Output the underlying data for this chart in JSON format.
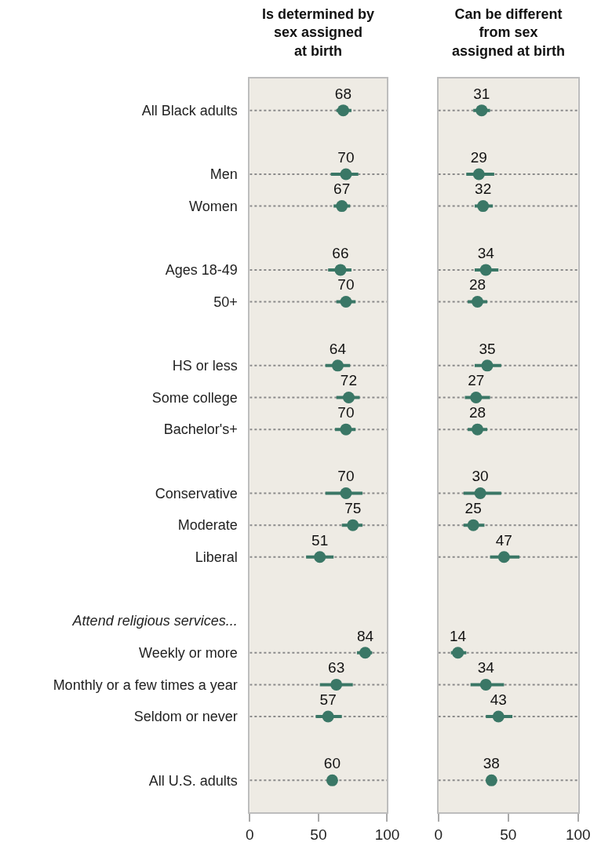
{
  "chart_data": [
    {
      "type": "scatter",
      "title": "Is determined by\nsex assigned\nat birth",
      "categories": [
        "All Black adults",
        null,
        "Men",
        "Women",
        null,
        "Ages 18-49",
        "50+",
        null,
        "HS or less",
        "Some college",
        "Bachelor's+",
        null,
        "Conservative",
        "Moderate",
        "Liberal",
        null,
        "Attend religious services...",
        "Weekly or more",
        "Monthly or a few times a year",
        "Seldom or never",
        null,
        "All U.S. adults"
      ],
      "values": [
        68,
        null,
        70,
        67,
        null,
        66,
        70,
        null,
        64,
        72,
        70,
        null,
        70,
        75,
        51,
        null,
        null,
        84,
        63,
        57,
        null,
        60
      ],
      "errors": [
        [
          63,
          74
        ],
        null,
        [
          59,
          79
        ],
        [
          61,
          73
        ],
        null,
        [
          57,
          74
        ],
        [
          63,
          77
        ],
        null,
        [
          55,
          73
        ],
        [
          63,
          80
        ],
        [
          62,
          77
        ],
        null,
        [
          55,
          82
        ],
        [
          67,
          82
        ],
        [
          41,
          61
        ],
        null,
        null,
        [
          78,
          89
        ],
        [
          51,
          75
        ],
        [
          48,
          67
        ],
        null,
        null
      ],
      "color": "#3a7766",
      "marker": "circle",
      "data_labels": true,
      "grid": "y",
      "orientation": "horizontal",
      "xlim": [
        0,
        100
      ],
      "xticks": [
        0,
        50,
        100
      ]
    },
    {
      "type": "scatter",
      "title": "Can be different\nfrom sex\nassigned at birth",
      "categories": [
        null,
        null,
        null,
        null,
        null,
        null,
        null,
        null,
        null,
        null,
        null,
        null,
        null,
        null,
        null,
        null,
        null,
        null,
        null,
        null,
        null,
        null
      ],
      "values": [
        31,
        null,
        29,
        32,
        null,
        34,
        28,
        null,
        35,
        27,
        28,
        null,
        30,
        25,
        47,
        null,
        null,
        14,
        34,
        43,
        null,
        38
      ],
      "errors": [
        [
          25,
          37
        ],
        null,
        [
          20,
          40
        ],
        [
          26,
          39
        ],
        null,
        [
          26,
          43
        ],
        [
          21,
          35
        ],
        null,
        [
          26,
          45
        ],
        [
          19,
          37
        ],
        [
          21,
          35
        ],
        null,
        [
          18,
          45
        ],
        [
          18,
          33
        ],
        [
          37,
          58
        ],
        null,
        null,
        [
          9,
          20
        ],
        [
          23,
          47
        ],
        [
          34,
          53
        ],
        null,
        null
      ],
      "color": "#3a7766",
      "marker": "circle",
      "data_labels": true,
      "grid": "y",
      "orientation": "horizontal",
      "xlim": [
        0,
        100
      ],
      "xticks": [
        0,
        50,
        100
      ]
    }
  ]
}
